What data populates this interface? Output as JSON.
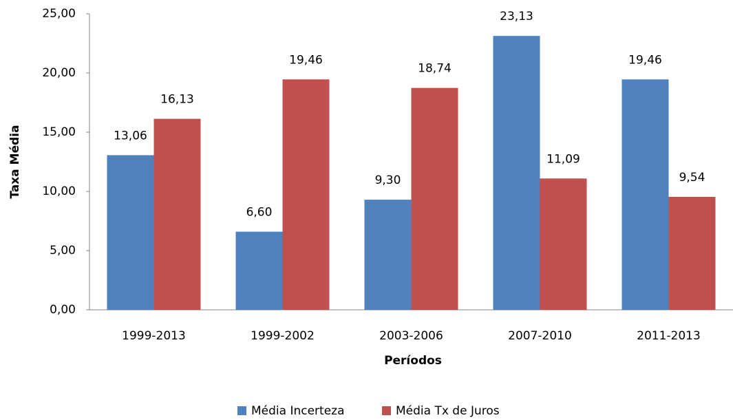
{
  "chart_data": {
    "type": "bar",
    "x_label": "Períodos",
    "y_label": "Taxa Média",
    "categories": [
      "1999-2013",
      "1999-2002",
      "2003-2006",
      "2007-2010",
      "2011-2013"
    ],
    "series": [
      {
        "name": "Média Incerteza",
        "color": "#4f81bd",
        "values": [
          13.06,
          6.6,
          9.3,
          23.13,
          19.46
        ],
        "value_labels": [
          "13,06",
          "6,60",
          "9,30",
          "23,13",
          "19,46"
        ]
      },
      {
        "name": "Média Tx de Juros",
        "color": "#c0504d",
        "values": [
          16.13,
          19.46,
          18.74,
          11.09,
          9.54
        ],
        "value_labels": [
          "16,13",
          "19,46",
          "18,74",
          "11,09",
          "9,54"
        ]
      }
    ],
    "ylim": [
      0,
      25
    ],
    "yticks": [
      {
        "value": 0,
        "label": "0,00"
      },
      {
        "value": 5,
        "label": "5,00"
      },
      {
        "value": 10,
        "label": "10,00"
      },
      {
        "value": 15,
        "label": "15,00"
      },
      {
        "value": 20,
        "label": "20,00"
      },
      {
        "value": 25,
        "label": "25,00"
      }
    ],
    "grid": false,
    "legend": "bottom"
  }
}
